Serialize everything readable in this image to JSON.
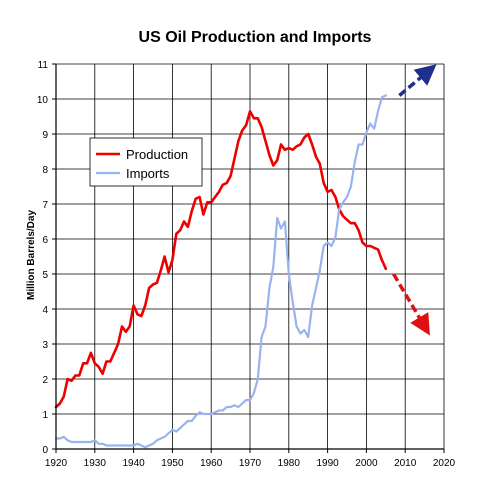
{
  "chart_data": {
    "type": "line",
    "title": "US Oil Production and Imports",
    "xlabel": "",
    "ylabel": "Million Barrels/Day",
    "xlim": [
      1920,
      2020
    ],
    "ylim": [
      0,
      11
    ],
    "xticks": [
      1920,
      1930,
      1940,
      1950,
      1960,
      1970,
      1980,
      1990,
      2000,
      2010,
      2020
    ],
    "yticks": [
      0,
      1,
      2,
      3,
      4,
      5,
      6,
      7,
      8,
      9,
      10,
      11
    ],
    "grid": true,
    "legend": "upper-left",
    "series": [
      {
        "name": "Production",
        "color": "#ee0000",
        "x": [
          1920,
          1921,
          1922,
          1923,
          1924,
          1925,
          1926,
          1927,
          1928,
          1929,
          1930,
          1931,
          1932,
          1933,
          1934,
          1935,
          1936,
          1937,
          1938,
          1939,
          1940,
          1941,
          1942,
          1943,
          1944,
          1945,
          1946,
          1947,
          1948,
          1949,
          1950,
          1951,
          1952,
          1953,
          1954,
          1955,
          1956,
          1957,
          1958,
          1959,
          1960,
          1961,
          1962,
          1963,
          1964,
          1965,
          1966,
          1967,
          1968,
          1969,
          1970,
          1971,
          1972,
          1973,
          1974,
          1975,
          1976,
          1977,
          1978,
          1979,
          1980,
          1981,
          1982,
          1983,
          1984,
          1985,
          1986,
          1987,
          1988,
          1989,
          1990,
          1991,
          1992,
          1993,
          1994,
          1995,
          1996,
          1997,
          1998,
          1999,
          2000,
          2001,
          2002,
          2003,
          2004,
          2005
        ],
        "values": [
          1.2,
          1.3,
          1.5,
          2.0,
          1.95,
          2.1,
          2.1,
          2.45,
          2.45,
          2.75,
          2.45,
          2.35,
          2.15,
          2.5,
          2.5,
          2.75,
          3.0,
          3.5,
          3.35,
          3.5,
          4.1,
          3.85,
          3.8,
          4.1,
          4.6,
          4.7,
          4.75,
          5.1,
          5.5,
          5.05,
          5.4,
          6.15,
          6.25,
          6.5,
          6.35,
          6.8,
          7.15,
          7.2,
          6.7,
          7.05,
          7.05,
          7.2,
          7.35,
          7.55,
          7.6,
          7.8,
          8.3,
          8.8,
          9.1,
          9.25,
          9.65,
          9.45,
          9.45,
          9.2,
          8.8,
          8.4,
          8.1,
          8.25,
          8.7,
          8.55,
          8.6,
          8.55,
          8.65,
          8.7,
          8.9,
          9.0,
          8.7,
          8.35,
          8.15,
          7.6,
          7.35,
          7.4,
          7.2,
          6.85,
          6.65,
          6.55,
          6.45,
          6.45,
          6.25,
          5.9,
          5.8,
          5.8,
          5.75,
          5.7,
          5.4,
          5.15
        ]
      },
      {
        "name": "Imports",
        "color": "#99b3ee",
        "x": [
          1920,
          1921,
          1922,
          1923,
          1924,
          1925,
          1926,
          1927,
          1928,
          1929,
          1930,
          1931,
          1932,
          1933,
          1934,
          1935,
          1936,
          1937,
          1938,
          1939,
          1940,
          1941,
          1942,
          1943,
          1944,
          1945,
          1946,
          1947,
          1948,
          1949,
          1950,
          1951,
          1952,
          1953,
          1954,
          1955,
          1956,
          1957,
          1958,
          1959,
          1960,
          1961,
          1962,
          1963,
          1964,
          1965,
          1966,
          1967,
          1968,
          1969,
          1970,
          1971,
          1972,
          1973,
          1974,
          1975,
          1976,
          1977,
          1978,
          1979,
          1980,
          1981,
          1982,
          1983,
          1984,
          1985,
          1986,
          1987,
          1988,
          1989,
          1990,
          1991,
          1992,
          1993,
          1994,
          1995,
          1996,
          1997,
          1998,
          1999,
          2000,
          2001,
          2002,
          2003,
          2004,
          2005
        ],
        "values": [
          0.3,
          0.3,
          0.35,
          0.25,
          0.2,
          0.2,
          0.2,
          0.2,
          0.2,
          0.2,
          0.25,
          0.15,
          0.15,
          0.1,
          0.1,
          0.1,
          0.1,
          0.1,
          0.1,
          0.1,
          0.1,
          0.15,
          0.1,
          0.05,
          0.1,
          0.15,
          0.25,
          0.3,
          0.35,
          0.45,
          0.55,
          0.5,
          0.6,
          0.7,
          0.8,
          0.8,
          0.95,
          1.05,
          1.0,
          1.0,
          1.0,
          1.05,
          1.1,
          1.1,
          1.2,
          1.2,
          1.25,
          1.2,
          1.3,
          1.4,
          1.4,
          1.6,
          2.0,
          3.2,
          3.5,
          4.6,
          5.2,
          6.6,
          6.3,
          6.5,
          5.0,
          4.2,
          3.5,
          3.3,
          3.4,
          3.2,
          4.1,
          4.6,
          5.1,
          5.8,
          5.9,
          5.8,
          6.05,
          6.85,
          7.05,
          7.2,
          7.5,
          8.2,
          8.7,
          8.7,
          9.05,
          9.3,
          9.15,
          9.65,
          10.05,
          10.1
        ]
      }
    ],
    "annotations": [
      {
        "type": "arrow",
        "color": "#1f2f8c",
        "direction": "up-right",
        "from": [
          2008.5,
          10.1
        ],
        "to": [
          2016,
          10.8
        ]
      },
      {
        "type": "arrow",
        "color": "#dd1111",
        "direction": "down-right",
        "from": [
          2007,
          5.0
        ],
        "to": [
          2015,
          3.5
        ]
      }
    ]
  }
}
